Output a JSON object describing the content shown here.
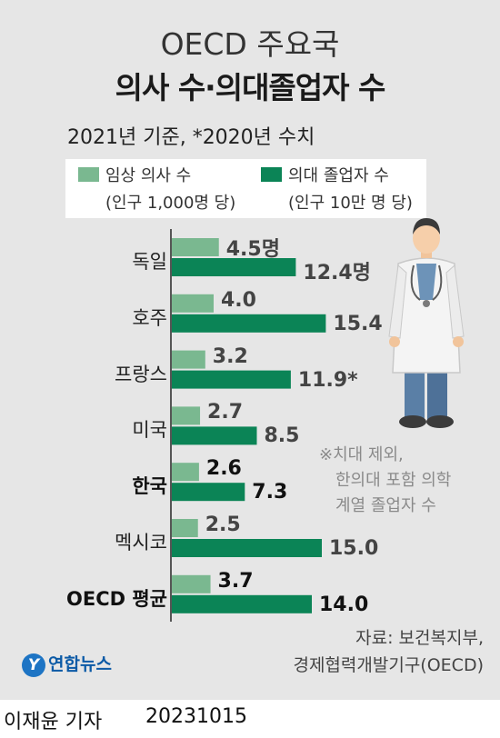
{
  "header": {
    "title_line1": "OECD 주요국",
    "title_line2": "의사 수·의대졸업자 수",
    "subtitle": "2021년 기준, *2020년 수치"
  },
  "legend": {
    "series1_line1": "임상 의사 수",
    "series1_line2": "(인구 1,000명 당)",
    "series2_line1": "의대 졸업자 수",
    "series2_line2": "(인구 10만 명 당)"
  },
  "colors": {
    "series1": "#7ab890",
    "series2": "#0b8456",
    "background": "#e6e6e6"
  },
  "chart_data": {
    "type": "bar",
    "orientation": "horizontal",
    "categories": [
      "독일",
      "호주",
      "프랑스",
      "미국",
      "한국",
      "멕시코",
      "OECD 평균"
    ],
    "highlighted": [
      "한국",
      "OECD 평균"
    ],
    "series": [
      {
        "name": "임상 의사 수 (인구 1,000명 당)",
        "values": [
          4.5,
          4.0,
          3.2,
          2.7,
          2.6,
          2.5,
          3.7
        ],
        "labels": [
          "4.5명",
          "4.0",
          "3.2",
          "2.7",
          "2.6",
          "2.5",
          "3.7"
        ]
      },
      {
        "name": "의대 졸업자 수 (인구 10만 명 당)",
        "values": [
          12.4,
          15.4,
          11.9,
          8.5,
          7.3,
          15.0,
          14.0
        ],
        "labels": [
          "12.4명",
          "15.4",
          "11.9*",
          "8.5",
          "7.3",
          "15.0",
          "14.0"
        ]
      }
    ]
  },
  "note": {
    "line1": "※치대 제외,",
    "line2": "한의대 포함 의학",
    "line3": "계열 졸업자 수"
  },
  "source": {
    "line1": "자료: 보건복지부,",
    "line2": "경제협력개발기구(OECD)"
  },
  "brand": {
    "name": "연합뉴스"
  },
  "credit": {
    "reporter": "이재윤 기자",
    "date": "20231015"
  }
}
